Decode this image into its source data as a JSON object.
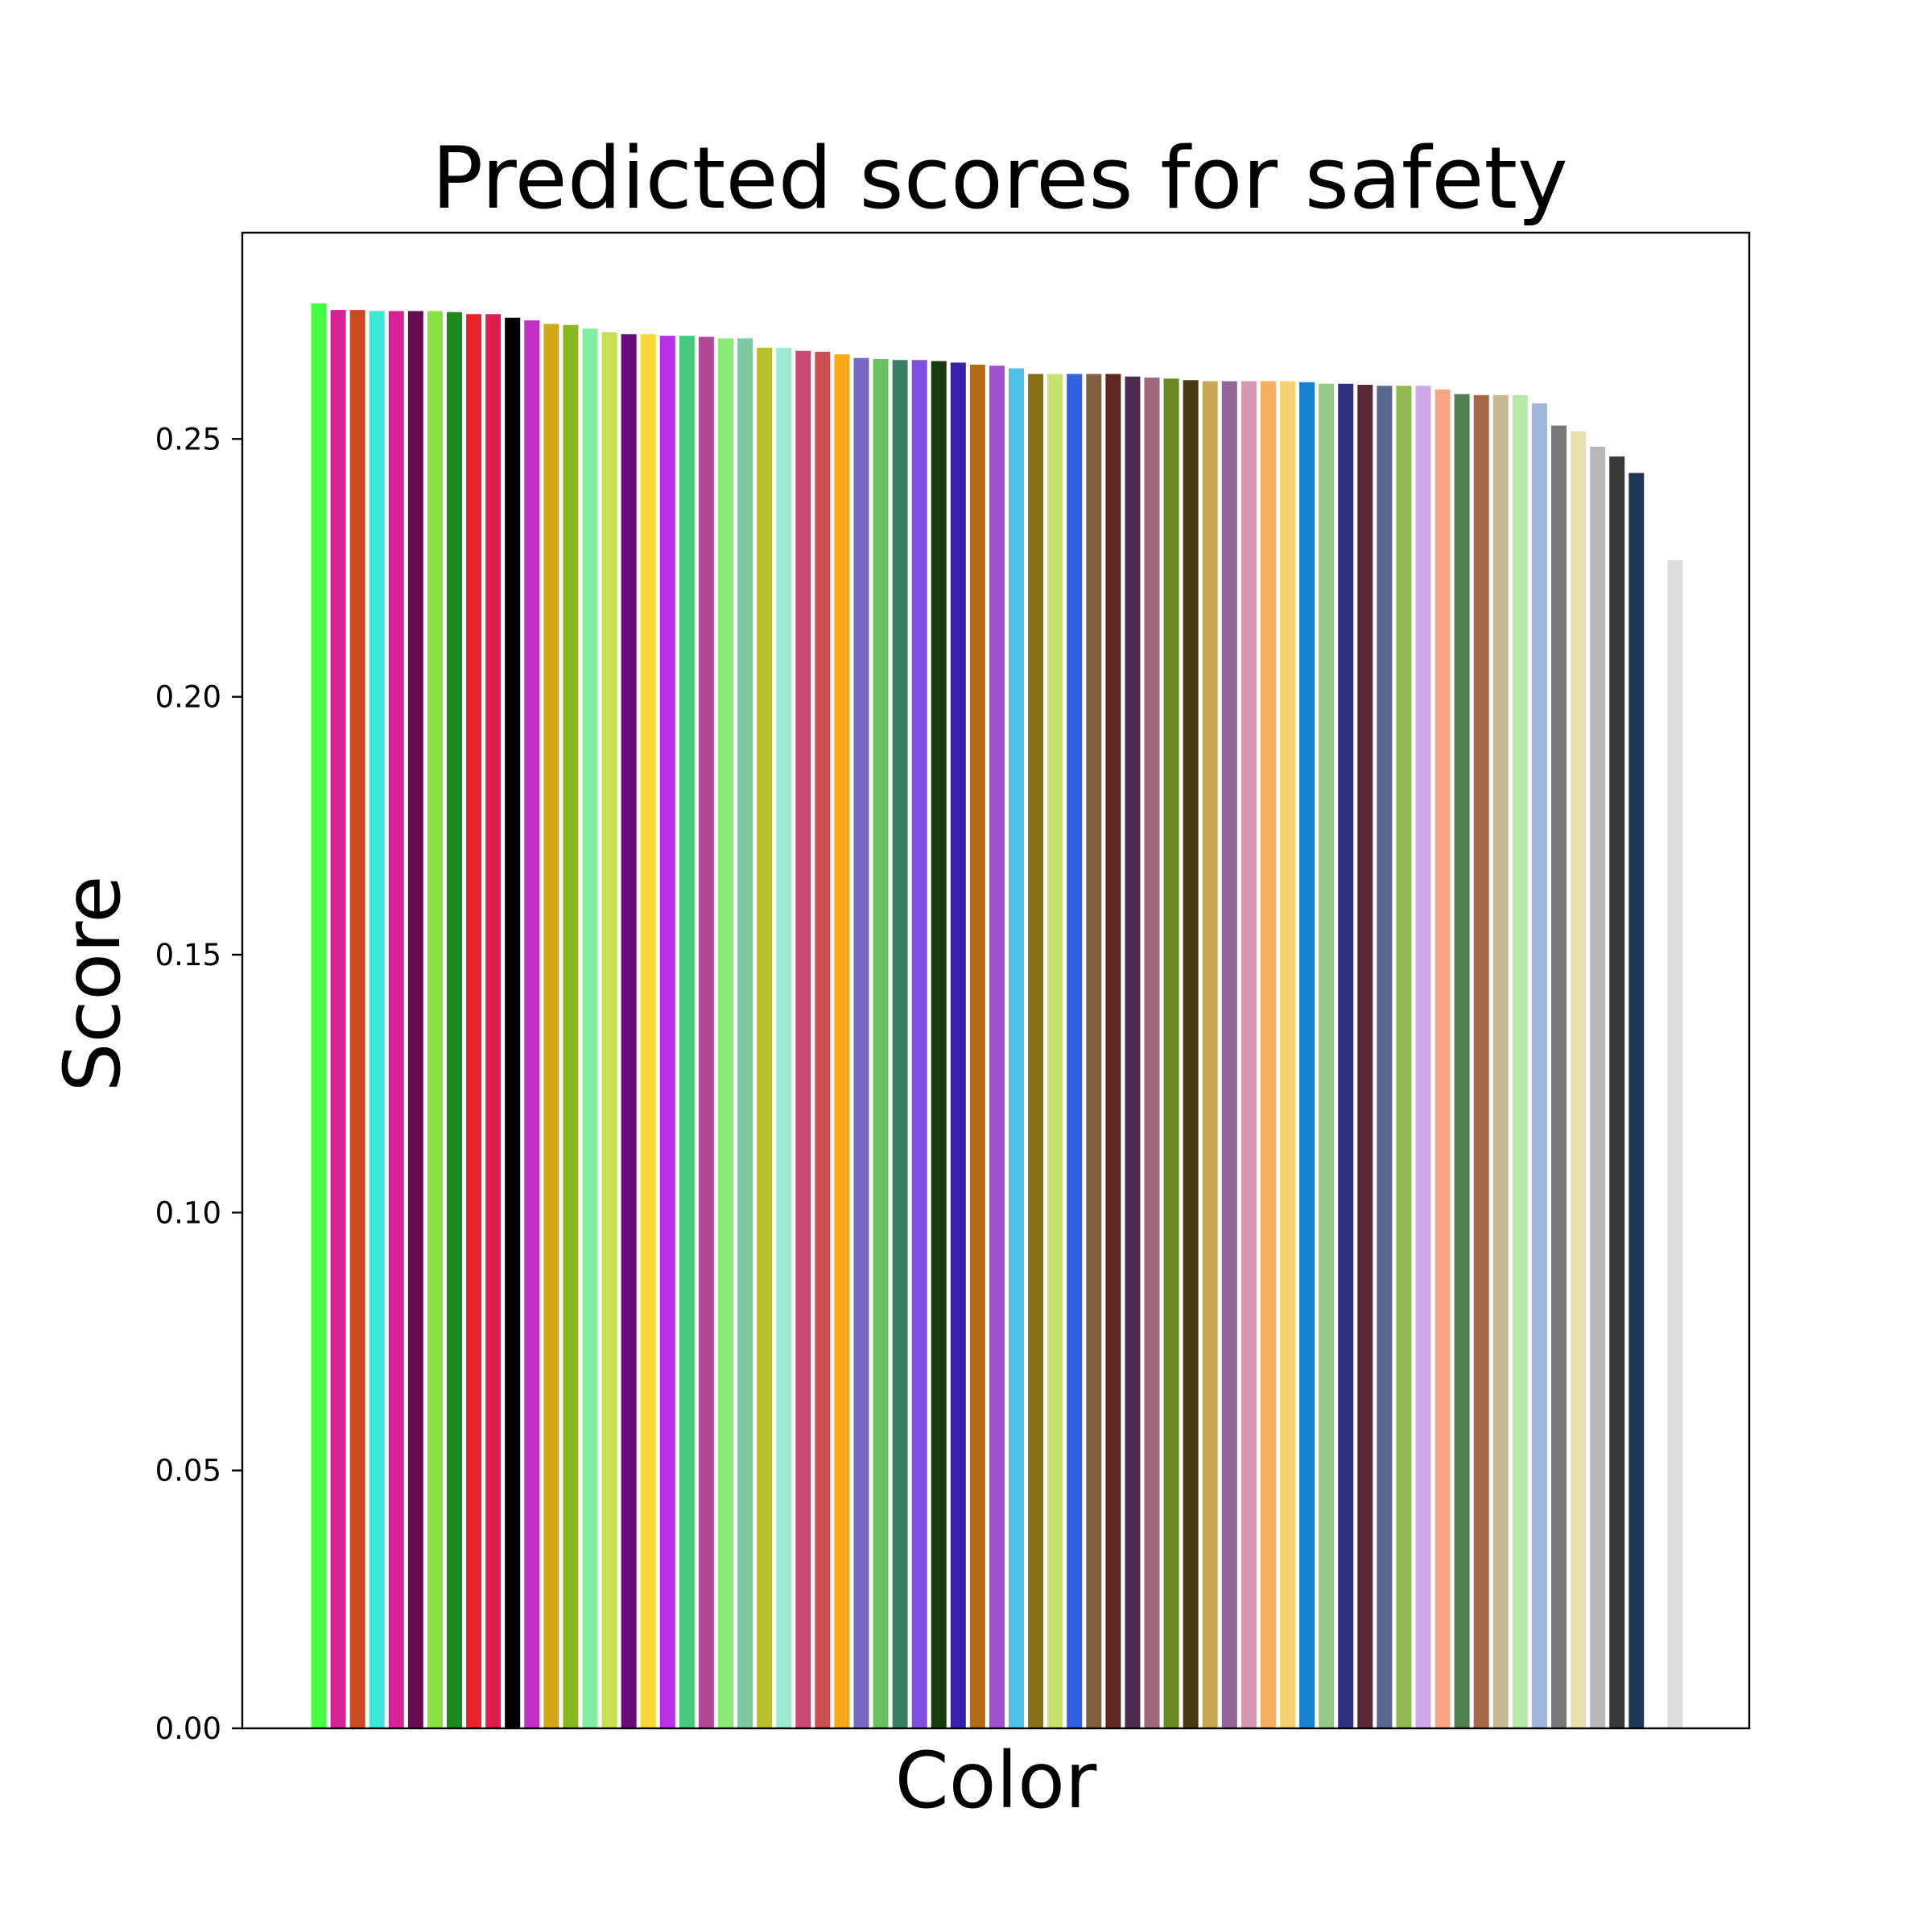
{
  "chart_data": {
    "type": "bar",
    "title": "Predicted scores for safety",
    "xlabel": "Color",
    "ylabel": "Score",
    "ylim": [
      0,
      0.29
    ],
    "grid": false,
    "legend": "none",
    "yticks": [
      {
        "value": 0.0,
        "label": "0.00"
      },
      {
        "value": 0.05,
        "label": "0.05"
      },
      {
        "value": 0.1,
        "label": "0.10"
      },
      {
        "value": 0.15,
        "label": "0.15"
      },
      {
        "value": 0.2,
        "label": "0.20"
      },
      {
        "value": 0.25,
        "label": "0.25"
      }
    ],
    "bars": [
      {
        "value": 0.2763,
        "color": "#44ff44"
      },
      {
        "value": 0.275,
        "color": "#d62296"
      },
      {
        "value": 0.275,
        "color": "#cc4a22"
      },
      {
        "value": 0.2748,
        "color": "#3de7d6"
      },
      {
        "value": 0.2748,
        "color": "#d62296"
      },
      {
        "value": 0.2748,
        "color": "#6a0a55"
      },
      {
        "value": 0.2748,
        "color": "#88e044"
      },
      {
        "value": 0.2746,
        "color": "#1a8a1a"
      },
      {
        "value": 0.2742,
        "color": "#e8222a"
      },
      {
        "value": 0.2742,
        "color": "#e01e4e"
      },
      {
        "value": 0.2735,
        "color": "#000000"
      },
      {
        "value": 0.273,
        "color": "#c030c8"
      },
      {
        "value": 0.2723,
        "color": "#d0a818"
      },
      {
        "value": 0.2721,
        "color": "#88b81e"
      },
      {
        "value": 0.2714,
        "color": "#80f0a0"
      },
      {
        "value": 0.2707,
        "color": "#c8e050"
      },
      {
        "value": 0.2703,
        "color": "#6a0a7a"
      },
      {
        "value": 0.2703,
        "color": "#f8d838"
      },
      {
        "value": 0.27,
        "color": "#b830e8"
      },
      {
        "value": 0.27,
        "color": "#48c880"
      },
      {
        "value": 0.2698,
        "color": "#b04898"
      },
      {
        "value": 0.2695,
        "color": "#8ce878"
      },
      {
        "value": 0.2695,
        "color": "#80c8a0"
      },
      {
        "value": 0.2677,
        "color": "#b8c030"
      },
      {
        "value": 0.2677,
        "color": "#a0e8d0"
      },
      {
        "value": 0.2671,
        "color": "#c84878"
      },
      {
        "value": 0.2669,
        "color": "#c85050"
      },
      {
        "value": 0.2664,
        "color": "#f8a818"
      },
      {
        "value": 0.2657,
        "color": "#7868c0"
      },
      {
        "value": 0.2655,
        "color": "#68c060"
      },
      {
        "value": 0.2653,
        "color": "#3a8060"
      },
      {
        "value": 0.2653,
        "color": "#8050e0"
      },
      {
        "value": 0.2651,
        "color": "#1a3a12"
      },
      {
        "value": 0.2648,
        "color": "#3a20b0"
      },
      {
        "value": 0.2644,
        "color": "#b06a18"
      },
      {
        "value": 0.2642,
        "color": "#a050c8"
      },
      {
        "value": 0.2637,
        "color": "#50c0e8"
      },
      {
        "value": 0.2626,
        "color": "#887018"
      },
      {
        "value": 0.2626,
        "color": "#c8e070"
      },
      {
        "value": 0.2626,
        "color": "#3060e8"
      },
      {
        "value": 0.2626,
        "color": "#806040"
      },
      {
        "value": 0.2626,
        "color": "#602820"
      },
      {
        "value": 0.2621,
        "color": "#502a50"
      },
      {
        "value": 0.2619,
        "color": "#a06878"
      },
      {
        "value": 0.2617,
        "color": "#6a8a20"
      },
      {
        "value": 0.2614,
        "color": "#4a3a12"
      },
      {
        "value": 0.2612,
        "color": "#c8a858"
      },
      {
        "value": 0.2612,
        "color": "#906898"
      },
      {
        "value": 0.2612,
        "color": "#d898b0"
      },
      {
        "value": 0.2612,
        "color": "#f8b060"
      },
      {
        "value": 0.2612,
        "color": "#f8d070"
      },
      {
        "value": 0.261,
        "color": "#1880d0"
      },
      {
        "value": 0.2607,
        "color": "#98c888"
      },
      {
        "value": 0.2607,
        "color": "#303080"
      },
      {
        "value": 0.2605,
        "color": "#5a2a38"
      },
      {
        "value": 0.2603,
        "color": "#586890"
      },
      {
        "value": 0.2603,
        "color": "#90b850"
      },
      {
        "value": 0.2603,
        "color": "#d0a8e8"
      },
      {
        "value": 0.2596,
        "color": "#f8a888"
      },
      {
        "value": 0.2587,
        "color": "#508050"
      },
      {
        "value": 0.2585,
        "color": "#a86848"
      },
      {
        "value": 0.2585,
        "color": "#c8b890"
      },
      {
        "value": 0.2585,
        "color": "#b8e8a8"
      },
      {
        "value": 0.2569,
        "color": "#a0b8e0"
      },
      {
        "value": 0.2526,
        "color": "#787878"
      },
      {
        "value": 0.2515,
        "color": "#e8e0b0"
      },
      {
        "value": 0.2485,
        "color": "#b8b8b8"
      },
      {
        "value": 0.2466,
        "color": "#383838"
      },
      {
        "value": 0.2434,
        "color": "#203858"
      },
      {
        "value": 0.0,
        "color": "#ffffff"
      },
      {
        "value": 0.2265,
        "color": "#dcdcdc"
      }
    ]
  }
}
